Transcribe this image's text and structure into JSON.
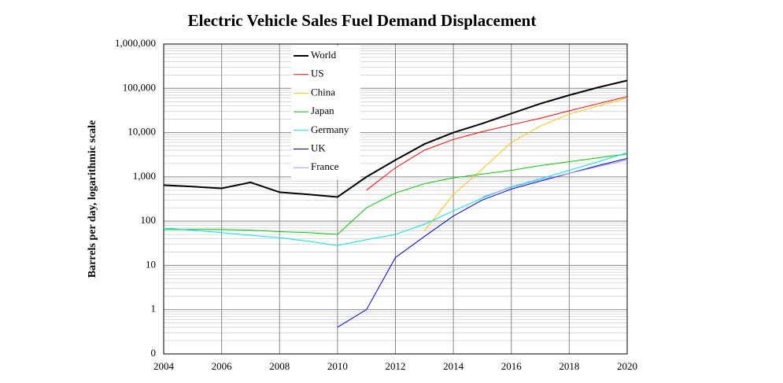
{
  "chart_data": {
    "type": "line",
    "title": "Electric Vehicle Sales Fuel Demand Displacement",
    "y_label": "Barrels per day, logarithmic scale",
    "x": [
      2004,
      2005,
      2006,
      2007,
      2008,
      2009,
      2010,
      2011,
      2012,
      2013,
      2014,
      2015,
      2016,
      2017,
      2018,
      2019,
      2020
    ],
    "xlim": [
      2004,
      2020
    ],
    "xticks": [
      2004,
      2006,
      2008,
      2010,
      2012,
      2014,
      2016,
      2018,
      2020
    ],
    "ylim": [
      0.1,
      1000000
    ],
    "log_y": true,
    "grid": true,
    "minor_grid": true,
    "legend": "top",
    "yticks": [
      {
        "value": 0.1,
        "label": "0"
      },
      1,
      10,
      100,
      {
        "value": 1000,
        "label": "1,000"
      },
      {
        "value": 10000,
        "label": "10,000"
      },
      {
        "value": 100000,
        "label": "100,000"
      },
      {
        "value": 1000000,
        "label": "1,000,000"
      }
    ],
    "series": [
      {
        "name": "World",
        "color": "#000000",
        "width": 2,
        "values": [
          650,
          600,
          550,
          750,
          450,
          400,
          350,
          1000,
          2400,
          5500,
          10000,
          16000,
          27000,
          45000,
          70000,
          105000,
          150000
        ]
      },
      {
        "name": "US",
        "color": "#ff0000",
        "width": 1,
        "values": [
          null,
          null,
          null,
          null,
          null,
          null,
          null,
          500,
          1600,
          4000,
          7000,
          10500,
          15000,
          21000,
          31000,
          45000,
          65000
        ]
      },
      {
        "name": "China",
        "color": "#ffc000",
        "width": 1,
        "values": [
          null,
          null,
          null,
          null,
          null,
          null,
          null,
          null,
          null,
          60,
          400,
          1500,
          6000,
          14000,
          26000,
          40000,
          60000
        ]
      },
      {
        "name": "Japan",
        "color": "#00cc00",
        "width": 1,
        "values": [
          65,
          65,
          65,
          62,
          58,
          55,
          50,
          200,
          430,
          700,
          950,
          1150,
          1400,
          1800,
          2200,
          2700,
          3300
        ]
      },
      {
        "name": "Germany",
        "color": "#00e5ee",
        "width": 1,
        "values": [
          70,
          62,
          55,
          48,
          42,
          35,
          28,
          38,
          50,
          85,
          170,
          330,
          600,
          900,
          1400,
          2200,
          3500
        ]
      },
      {
        "name": "UK",
        "color": "#0000cc",
        "width": 1,
        "values": [
          null,
          null,
          null,
          null,
          null,
          null,
          0.4,
          1,
          15,
          45,
          130,
          300,
          530,
          800,
          1200,
          1800,
          2600
        ]
      },
      {
        "name": "France",
        "color": "#9999ff",
        "width": 1,
        "values": [
          null,
          null,
          null,
          null,
          null,
          null,
          null,
          null,
          null,
          null,
          null,
          350,
          580,
          850,
          1200,
          1700,
          2400
        ]
      }
    ]
  }
}
